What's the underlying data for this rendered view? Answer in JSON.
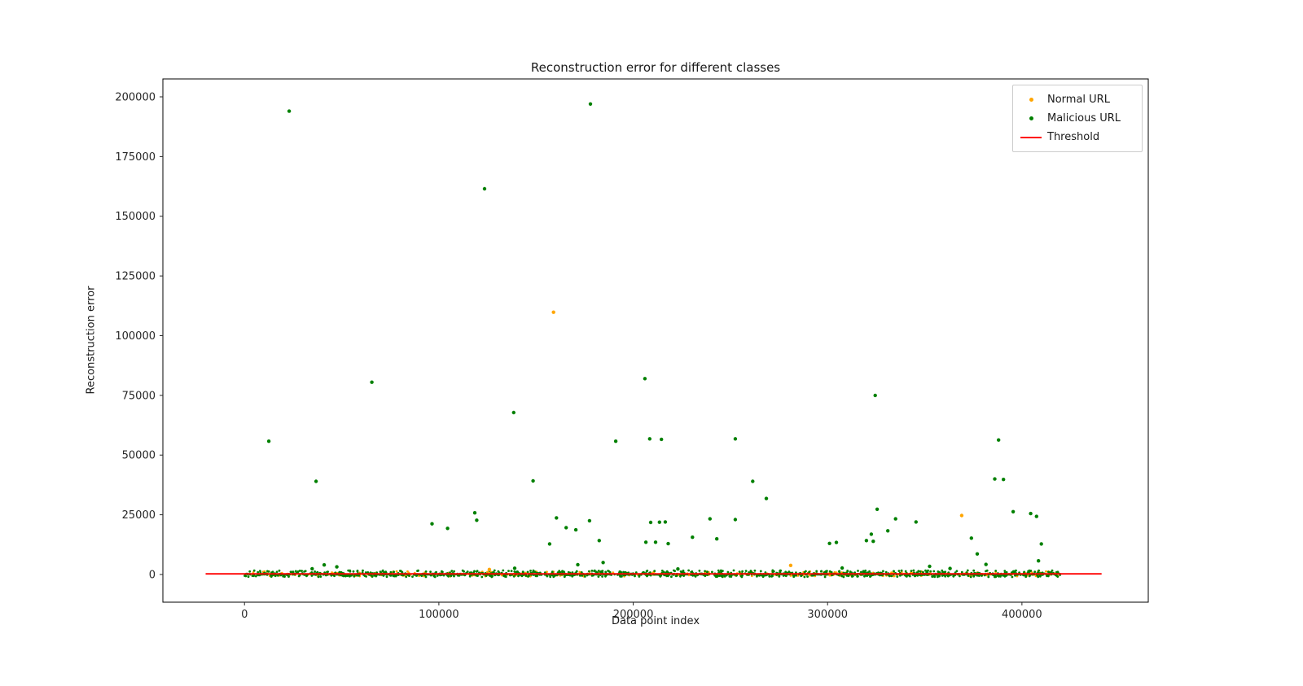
{
  "chart_data": {
    "type": "scatter",
    "title": "Reconstruction error for different classes",
    "xlabel": "Data point index",
    "ylabel": "Reconstruction error",
    "xlim": [
      -42000,
      465000
    ],
    "ylim": [
      -11600,
      207500
    ],
    "xticks": [
      0,
      100000,
      200000,
      300000,
      400000
    ],
    "yticks": [
      0,
      25000,
      50000,
      75000,
      100000,
      125000,
      150000,
      175000,
      200000
    ],
    "grid": false,
    "legend_position": "upper right",
    "colors": {
      "normal": "#ffa500",
      "malicious": "#008000",
      "threshold": "#ff0000",
      "spine": "#000000",
      "tick_text": "#262626"
    },
    "series": [
      {
        "name": "Normal URL",
        "type": "scatter",
        "color": "#ffa500",
        "points": [
          [
            159000,
            109800
          ],
          [
            369000,
            24700
          ],
          [
            281000,
            3800
          ],
          [
            126000,
            2100
          ]
        ]
      },
      {
        "name": "Malicious URL",
        "type": "scatter",
        "color": "#008000",
        "points": [
          [
            23000,
            194000
          ],
          [
            178000,
            197000
          ],
          [
            123500,
            161500
          ],
          [
            65500,
            80500
          ],
          [
            206000,
            82000
          ],
          [
            324500,
            75000
          ],
          [
            138500,
            67800
          ],
          [
            12500,
            55800
          ],
          [
            191000,
            55800
          ],
          [
            208500,
            56800
          ],
          [
            214500,
            56600
          ],
          [
            252500,
            56800
          ],
          [
            388000,
            56300
          ],
          [
            36800,
            39000
          ],
          [
            148500,
            39200
          ],
          [
            261500,
            39000
          ],
          [
            386000,
            40000
          ],
          [
            390500,
            39800
          ],
          [
            268500,
            31800
          ],
          [
            325500,
            27300
          ],
          [
            118500,
            25800
          ],
          [
            395500,
            26300
          ],
          [
            404500,
            25500
          ],
          [
            407500,
            24300
          ],
          [
            160500,
            23700
          ],
          [
            119500,
            22700
          ],
          [
            177500,
            22500
          ],
          [
            239500,
            23300
          ],
          [
            252500,
            23000
          ],
          [
            335000,
            23300
          ],
          [
            209000,
            21800
          ],
          [
            213500,
            21900
          ],
          [
            216500,
            22000
          ],
          [
            345500,
            22000
          ],
          [
            96500,
            21200
          ],
          [
            104500,
            19300
          ],
          [
            165500,
            19600
          ],
          [
            170500,
            18700
          ],
          [
            331000,
            18300
          ],
          [
            322500,
            16900
          ],
          [
            230500,
            15600
          ],
          [
            243000,
            14900
          ],
          [
            374000,
            15200
          ],
          [
            182500,
            14200
          ],
          [
            320000,
            14200
          ],
          [
            323500,
            13900
          ],
          [
            157000,
            12800
          ],
          [
            206500,
            13500
          ],
          [
            211500,
            13500
          ],
          [
            218000,
            12900
          ],
          [
            301000,
            13000
          ],
          [
            304500,
            13400
          ],
          [
            410000,
            12800
          ],
          [
            377000,
            8600
          ],
          [
            408500,
            5700
          ],
          [
            41000,
            4000
          ],
          [
            47500,
            3200
          ],
          [
            34800,
            2400
          ],
          [
            139000,
            2600
          ],
          [
            171500,
            4100
          ],
          [
            184500,
            5000
          ],
          [
            381500,
            4200
          ],
          [
            307500,
            2700
          ],
          [
            352500,
            3400
          ],
          [
            363000,
            2500
          ],
          [
            223000,
            2300
          ]
        ]
      },
      {
        "name": "Threshold",
        "type": "line",
        "color": "#ff0000",
        "y": 250,
        "x_range": [
          -20000,
          441000
        ]
      }
    ],
    "baseline_band": {
      "note": "dense cluster of reconstruction errors near zero for both classes",
      "x_range": [
        0,
        420000
      ],
      "y_range": [
        -1800,
        1800
      ],
      "normal_count": 450,
      "malicious_count": 1500
    }
  }
}
